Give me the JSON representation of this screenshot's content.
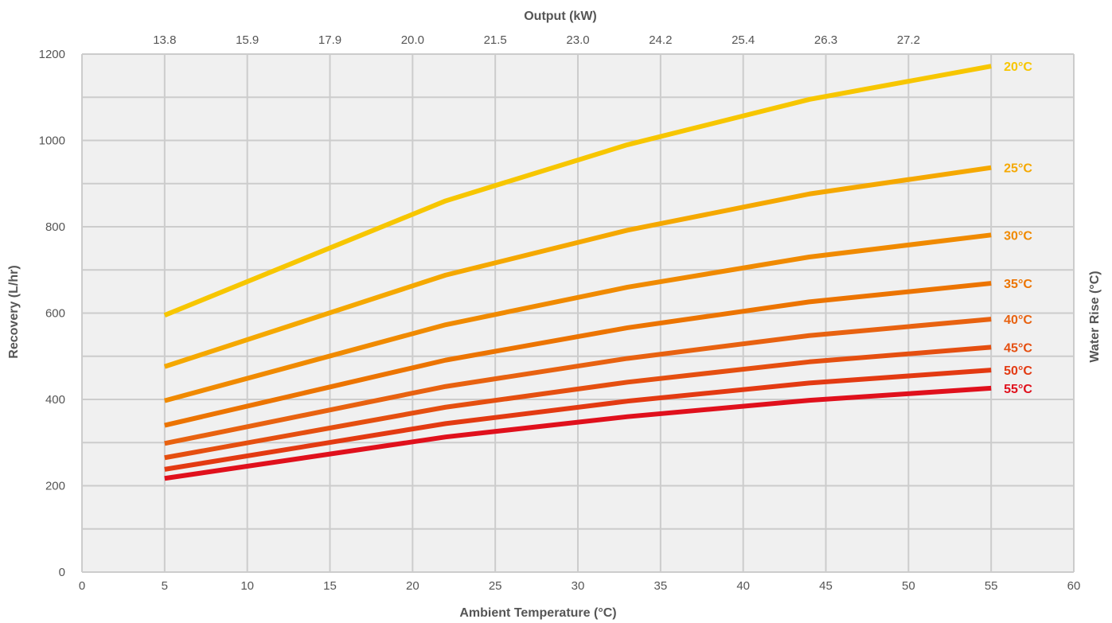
{
  "chart_data": {
    "type": "line",
    "title": "",
    "xlabel": "Ambient Temperature (°C)",
    "ylabel": "Recovery (L/hr)",
    "top_xlabel": "Output (kW)",
    "right_ylabel": "Water Rise (°C)",
    "xlim": [
      0,
      60
    ],
    "ylim": [
      0,
      1200
    ],
    "x_ticks": [
      "0",
      "5",
      "10",
      "15",
      "20",
      "25",
      "30",
      "35",
      "40",
      "45",
      "50",
      "55",
      "60"
    ],
    "y_ticks": [
      "0",
      "200",
      "400",
      "600",
      "800",
      "1000",
      "1200"
    ],
    "top_ticks": [
      "13.8",
      "15.9",
      "17.9",
      "20.0",
      "21.5",
      "23.0",
      "24.2",
      "25.4",
      "26.3",
      "27.2"
    ],
    "grid": true,
    "x": [
      5,
      22,
      33,
      44,
      55
    ],
    "series": [
      {
        "name": "20°C",
        "color": "#f7c600",
        "values": [
          595,
          860,
          990,
          1095,
          1172
        ]
      },
      {
        "name": "25°C",
        "color": "#f5a800",
        "values": [
          476,
          688,
          792,
          876,
          937
        ]
      },
      {
        "name": "30°C",
        "color": "#f08a00",
        "values": [
          397,
          573,
          660,
          730,
          781
        ]
      },
      {
        "name": "35°C",
        "color": "#ec7400",
        "values": [
          340,
          491,
          566,
          626,
          669
        ]
      },
      {
        "name": "40°C",
        "color": "#e86210",
        "values": [
          298,
          430,
          495,
          548,
          586
        ]
      },
      {
        "name": "45°C",
        "color": "#e54f10",
        "values": [
          265,
          382,
          440,
          487,
          521
        ]
      },
      {
        "name": "50°C",
        "color": "#e33a12",
        "values": [
          238,
          344,
          396,
          438,
          468
        ]
      },
      {
        "name": "55°C",
        "color": "#e0101c",
        "values": [
          217,
          313,
          360,
          398,
          426
        ]
      }
    ]
  }
}
